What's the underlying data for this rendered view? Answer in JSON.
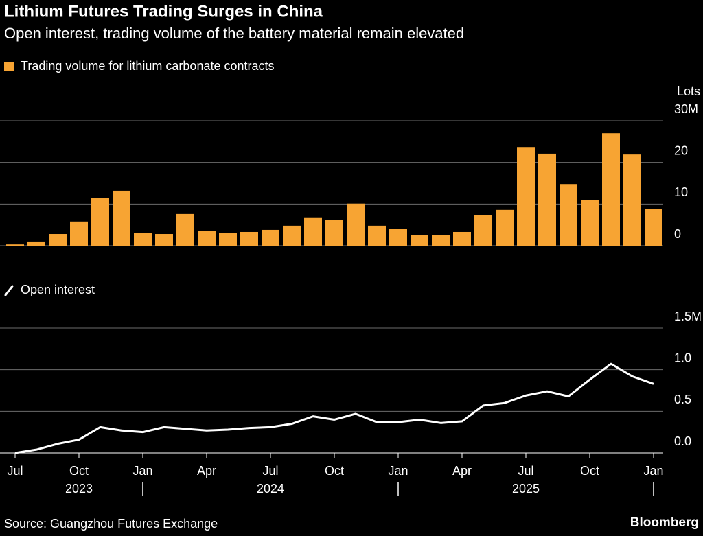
{
  "title": "Lithium Futures Trading Surges in China",
  "subtitle": "Open interest, trading volume of the battery material remain elevated",
  "source": "Source: Guangzhou Futures Exchange",
  "brand": "Bloomberg",
  "chart_data": [
    {
      "type": "bar",
      "y_label": "Lots",
      "series": [
        {
          "name": "Trading volume for lithium carbonate contracts",
          "color": "#f7a433",
          "values": [
            0.3,
            1.0,
            2.8,
            5.8,
            11.4,
            13.2,
            3.0,
            2.8,
            7.6,
            3.6,
            3.0,
            3.3,
            3.8,
            4.8,
            6.8,
            6.1,
            10.1,
            4.8,
            4.1,
            2.6,
            2.6,
            3.3,
            7.3,
            8.6,
            23.7,
            22.1,
            14.8,
            10.9,
            27.0,
            21.9,
            8.9
          ]
        }
      ],
      "ylim": [
        0,
        30
      ],
      "yticks": [
        0,
        10,
        20,
        {
          "value": 30,
          "label": "30M"
        }
      ],
      "grid": true
    },
    {
      "type": "line",
      "categories": [
        "Jul",
        null,
        null,
        "Oct",
        null,
        null,
        "Jan",
        null,
        null,
        "Apr",
        null,
        null,
        "Jul",
        null,
        null,
        "Oct",
        null,
        null,
        "Jan",
        null,
        null,
        "Apr",
        null,
        null,
        "Jul",
        null,
        null,
        "Oct",
        null,
        null,
        "Jan"
      ],
      "years": [
        "2023",
        "2024",
        "2025"
      ],
      "series": [
        {
          "name": "Open interest",
          "color": "#ffffff",
          "values": [
            0.0,
            0.04,
            0.11,
            0.16,
            0.31,
            0.27,
            0.25,
            0.31,
            0.29,
            0.27,
            0.28,
            0.3,
            0.31,
            0.35,
            0.44,
            0.4,
            0.47,
            0.37,
            0.37,
            0.4,
            0.36,
            0.38,
            0.57,
            0.6,
            0.69,
            0.74,
            0.68,
            0.88,
            1.07,
            0.92,
            0.83
          ]
        }
      ],
      "ylim": [
        0,
        1.5
      ],
      "yticks": [
        {
          "value": 0,
          "label": "0.0"
        },
        0.5,
        {
          "value": 1,
          "label": "1.0"
        },
        {
          "value": 1.5,
          "label": "1.5M"
        }
      ],
      "grid": true
    }
  ]
}
